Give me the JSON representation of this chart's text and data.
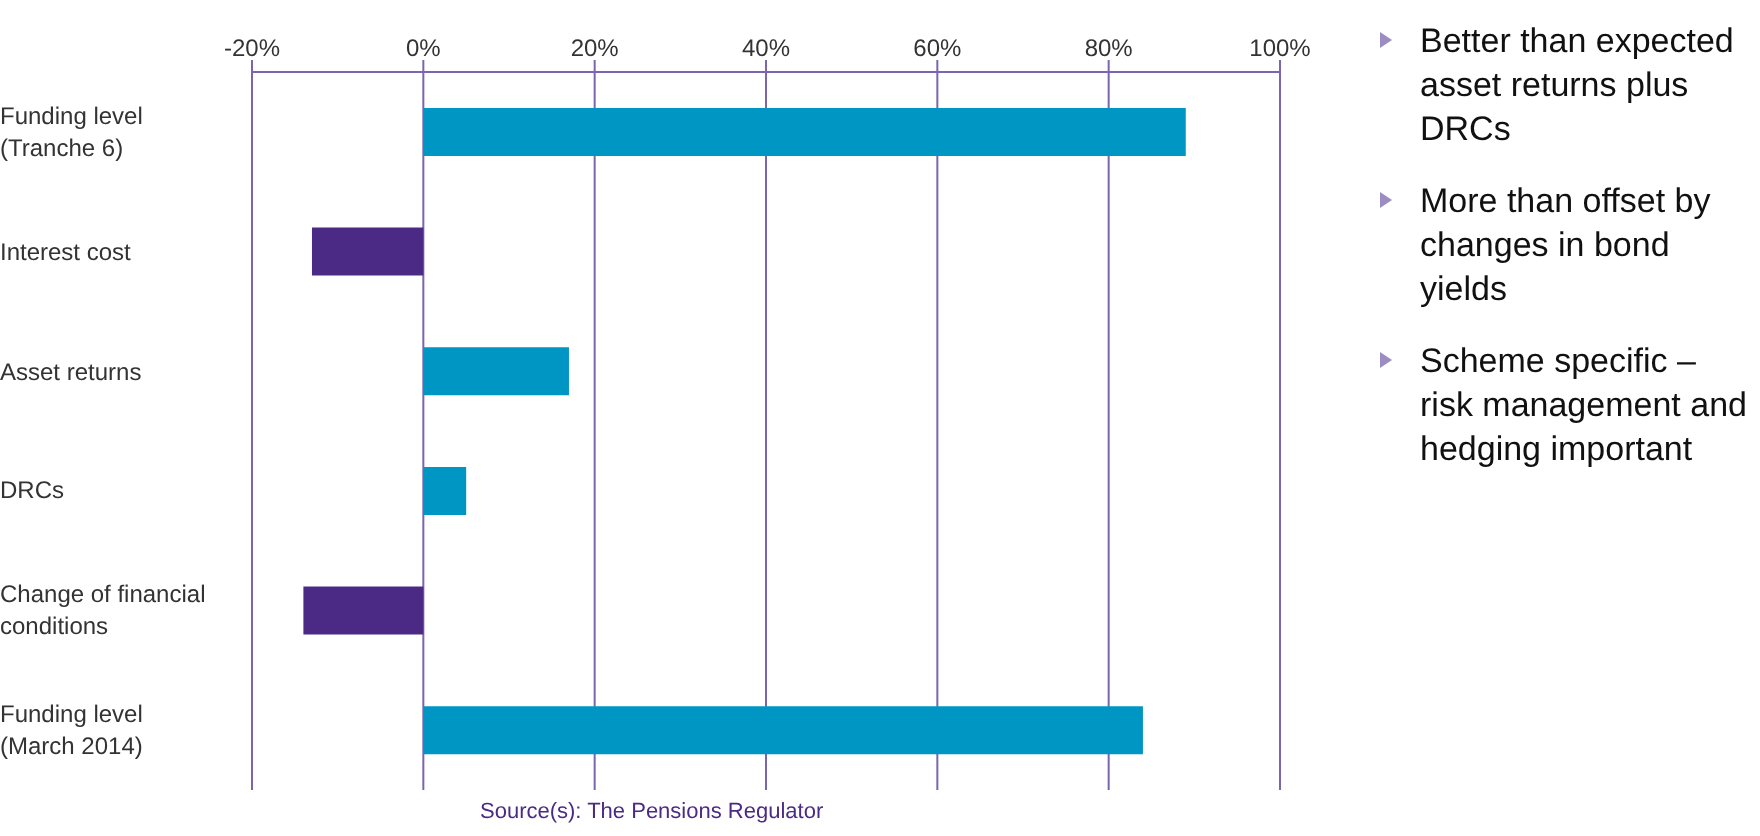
{
  "chart_data": {
    "type": "bar",
    "orientation": "horizontal",
    "categories": [
      "Funding level (Tranche 6)",
      "Interest cost",
      "Asset returns",
      "DRCs",
      "Change of financial conditions",
      "Funding level (March 2014)"
    ],
    "values": [
      89,
      -13,
      17,
      5,
      -14,
      84
    ],
    "colors": [
      "#0096c3",
      "#4b2a85",
      "#0096c3",
      "#0096c3",
      "#4b2a85",
      "#0096c3"
    ],
    "xlim": [
      -20,
      100
    ],
    "xticks": [
      {
        "value": -20,
        "label": "-20%"
      },
      {
        "value": 0,
        "label": "0%"
      },
      {
        "value": 20,
        "label": "20%"
      },
      {
        "value": 40,
        "label": "40%"
      },
      {
        "value": 60,
        "label": "60%"
      },
      {
        "value": 80,
        "label": "80%"
      },
      {
        "value": 100,
        "label": "100%"
      }
    ],
    "grid": "x",
    "annotations": [
      "Better than expected asset returns plus DRCs",
      "More than offset by changes in bond yields",
      "Scheme specific – risk management and hedging important",
      "Source(s): The Pensions Regulator"
    ]
  }
}
